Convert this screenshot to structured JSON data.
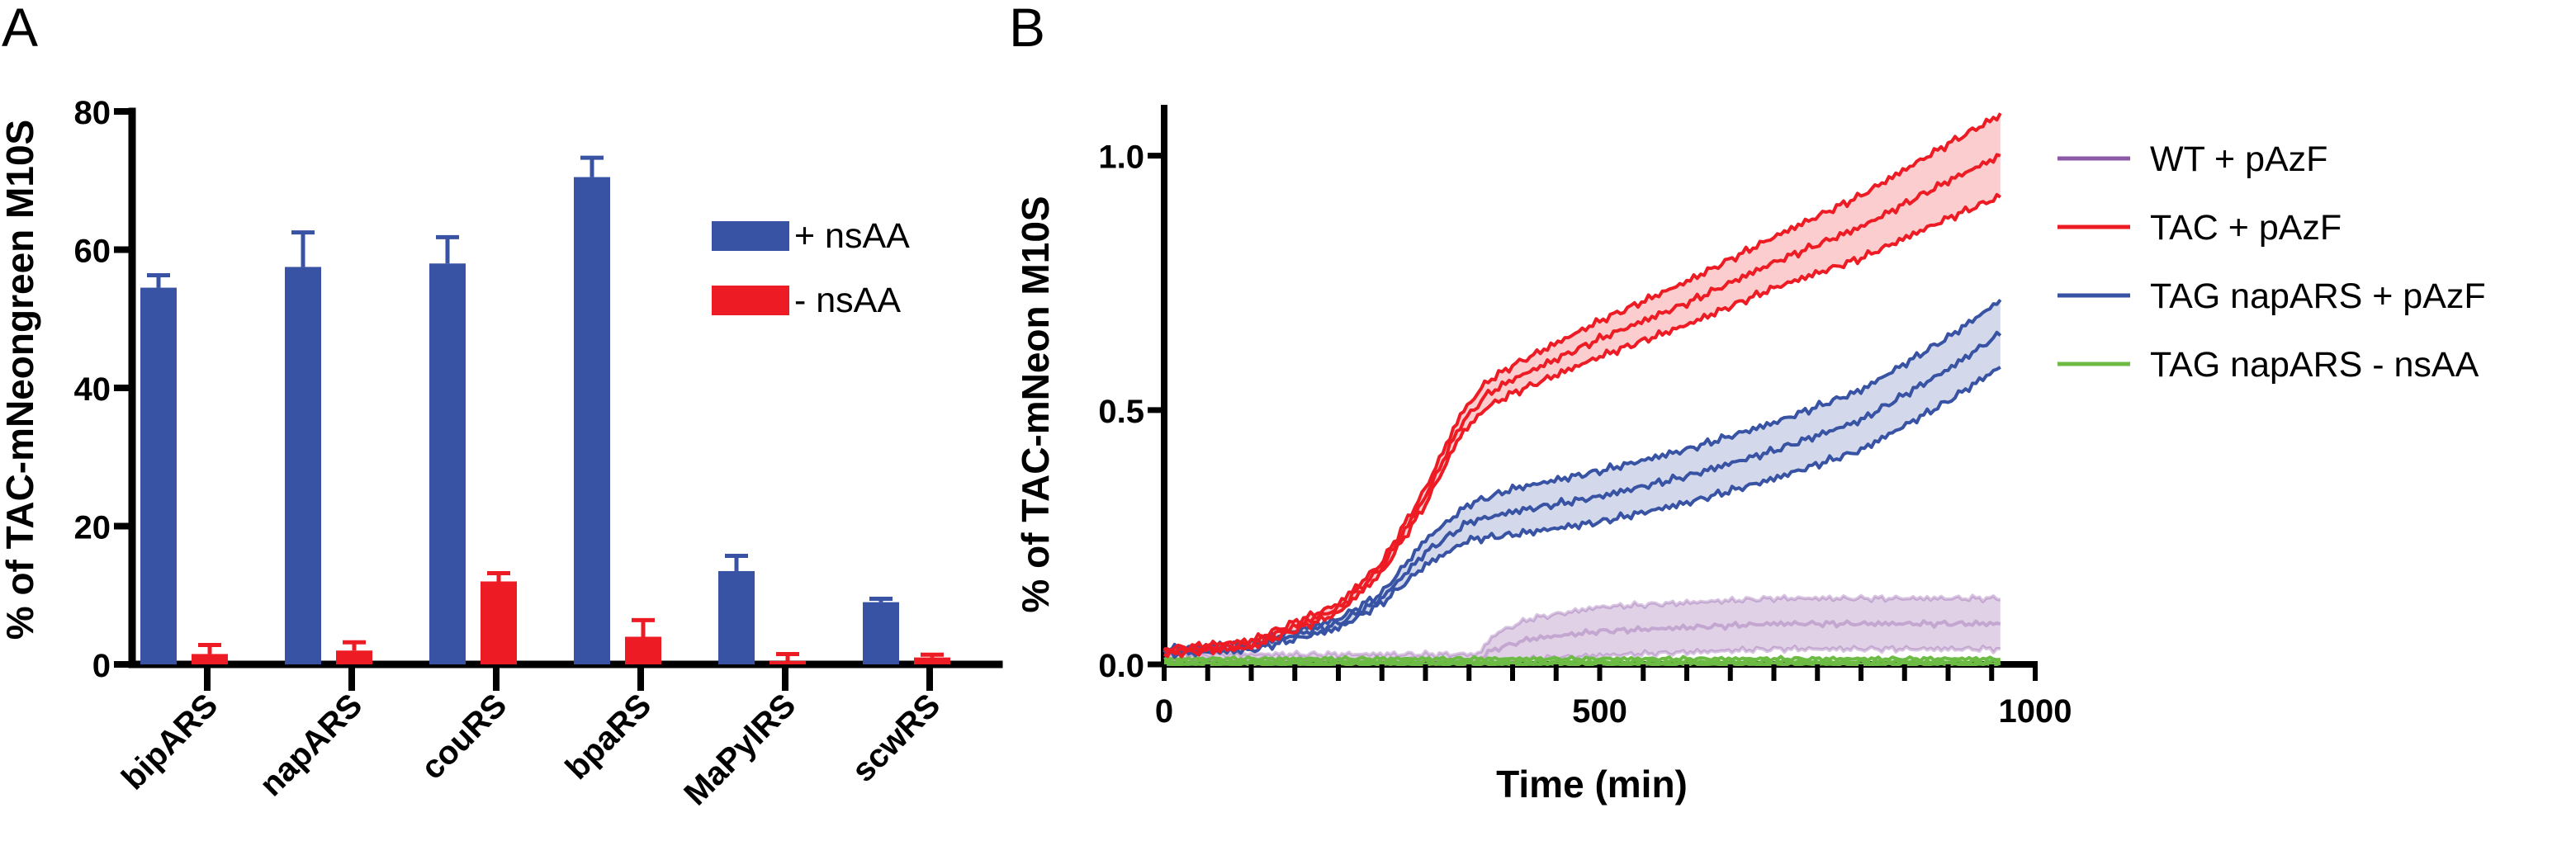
{
  "panels": {
    "a": "A",
    "b": "B"
  },
  "chart_data": [
    {
      "type": "bar",
      "ylabel": "% of TAC-mNeongreen M10S",
      "xlabel": "",
      "ylim": [
        0,
        80
      ],
      "yticks": [
        "0",
        "20",
        "40",
        "60",
        "80"
      ],
      "categories": [
        "bipARS",
        "napARS",
        "couRS",
        "bpaRS",
        "MaPylRS",
        "scwRS"
      ],
      "series": [
        {
          "name": "+ nsAA",
          "color": "#3853a4",
          "values": [
            54.5,
            57.5,
            58,
            70.5,
            13.5,
            9
          ],
          "errors": [
            1.8,
            5,
            3.8,
            2.8,
            2.2,
            0.5
          ]
        },
        {
          "name": "- nsAA",
          "color": "#ed1c24",
          "values": [
            1.5,
            2,
            12,
            4,
            0.5,
            1
          ],
          "errors": [
            1.3,
            1.2,
            1.2,
            2.4,
            1.0,
            0.4
          ]
        }
      ],
      "legend_position": "top-right"
    },
    {
      "type": "line",
      "xlabel": "Time (min)",
      "ylabel": "% of TAC-mNeon M10S",
      "xlim": [
        0,
        1000
      ],
      "ylim": [
        0,
        1.1
      ],
      "xticks": [
        "0",
        "500",
        "1000"
      ],
      "yticks": [
        "0.0",
        "0.5",
        "1.0"
      ],
      "x_end": 960,
      "legend_position": "right",
      "series": [
        {
          "name": "WT + pAzF",
          "color": "#8e5aa8",
          "band": true,
          "mean": [
            [
              0,
              0.01
            ],
            [
              360,
              0.01
            ],
            [
              380,
              0.03
            ],
            [
              420,
              0.05
            ],
            [
              500,
              0.065
            ],
            [
              700,
              0.08
            ],
            [
              960,
              0.08
            ]
          ],
          "sd": [
            [
              0,
              0.01
            ],
            [
              360,
              0.01
            ],
            [
              380,
              0.03
            ],
            [
              420,
              0.04
            ],
            [
              500,
              0.048
            ],
            [
              700,
              0.05
            ],
            [
              960,
              0.05
            ]
          ]
        },
        {
          "name": "TAC + pAzF",
          "color": "#ed1c24",
          "band": true,
          "mean": [
            [
              0,
              0.025
            ],
            [
              100,
              0.04
            ],
            [
              200,
              0.11
            ],
            [
              250,
              0.19
            ],
            [
              300,
              0.33
            ],
            [
              340,
              0.47
            ],
            [
              370,
              0.53
            ],
            [
              400,
              0.56
            ],
            [
              500,
              0.64
            ],
            [
              600,
              0.71
            ],
            [
              700,
              0.79
            ],
            [
              800,
              0.86
            ],
            [
              900,
              0.95
            ],
            [
              960,
              1.0
            ]
          ],
          "sd": [
            [
              0,
              0.005
            ],
            [
              250,
              0.01
            ],
            [
              340,
              0.02
            ],
            [
              370,
              0.025
            ],
            [
              500,
              0.035
            ],
            [
              700,
              0.05
            ],
            [
              960,
              0.08
            ]
          ]
        },
        {
          "name": "TAG napARS + pAzF",
          "color": "#3853a4",
          "band": true,
          "mean": [
            [
              0,
              0.025
            ],
            [
              100,
              0.035
            ],
            [
              200,
              0.08
            ],
            [
              250,
              0.13
            ],
            [
              300,
              0.22
            ],
            [
              350,
              0.28
            ],
            [
              400,
              0.3
            ],
            [
              500,
              0.33
            ],
            [
              600,
              0.37
            ],
            [
              700,
              0.42
            ],
            [
              800,
              0.48
            ],
            [
              900,
              0.58
            ],
            [
              960,
              0.65
            ]
          ],
          "sd": [
            [
              0,
              0.005
            ],
            [
              250,
              0.01
            ],
            [
              300,
              0.025
            ],
            [
              400,
              0.045
            ],
            [
              500,
              0.05
            ],
            [
              700,
              0.055
            ],
            [
              960,
              0.065
            ]
          ]
        },
        {
          "name": "TAG napARS - nsAA",
          "color": "#6cbb45",
          "band": true,
          "mean": [
            [
              0,
              0.005
            ],
            [
              960,
              0.005
            ]
          ],
          "sd": [
            [
              0,
              0.006
            ],
            [
              960,
              0.006
            ]
          ]
        }
      ]
    }
  ]
}
